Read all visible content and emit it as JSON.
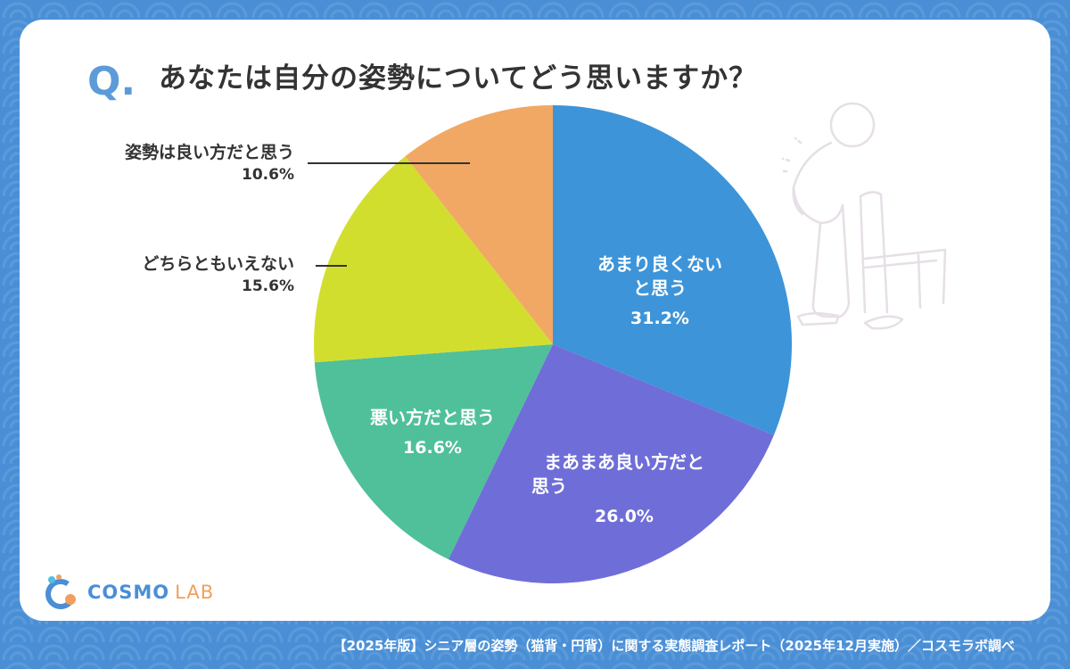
{
  "question": {
    "mark": "Q",
    "dot": ".",
    "text": "あなたは自分の姿勢についてどう思いますか？"
  },
  "chart_data": {
    "type": "pie",
    "title": "あなたは自分の姿勢についてどう思いますか？",
    "start": "12 o'clock, clockwise",
    "slices": [
      {
        "label_lines": [
          "あまり良くない",
          "と思う"
        ],
        "value": 31.2,
        "value_label": "31.2%",
        "color": "#3d94d8",
        "label_position": "inside"
      },
      {
        "label_lines": [
          "まあまあ良い方だと",
          "思う"
        ],
        "value": 26.0,
        "value_label": "26.0%",
        "color": "#6f6ed8",
        "label_position": "inside"
      },
      {
        "label_lines": [
          "悪い方だと思う"
        ],
        "value": 16.6,
        "value_label": "16.6%",
        "color": "#4fc09a",
        "label_position": "inside"
      },
      {
        "label_lines": [
          "どちらともいえない"
        ],
        "value": 15.6,
        "value_label": "15.6%",
        "color": "#d2de2e",
        "label_position": "outside"
      },
      {
        "label_lines": [
          "姿勢は良い方だと思う"
        ],
        "value": 10.6,
        "value_label": "10.6%",
        "color": "#f2a865",
        "label_position": "outside"
      }
    ]
  },
  "logo": {
    "cosmo": "COSMO",
    "lab": "LAB",
    "icon": "cosmo-lab-logo-icon"
  },
  "footer": {
    "text": "【2025年版】シニア層の姿勢（猫背・円背）に関する実態調査レポート（2025年12月実施）／コスモラボ調べ"
  },
  "illustration": {
    "icon": "elderly-person-chair-illustration",
    "color": "#e6dfe6"
  }
}
